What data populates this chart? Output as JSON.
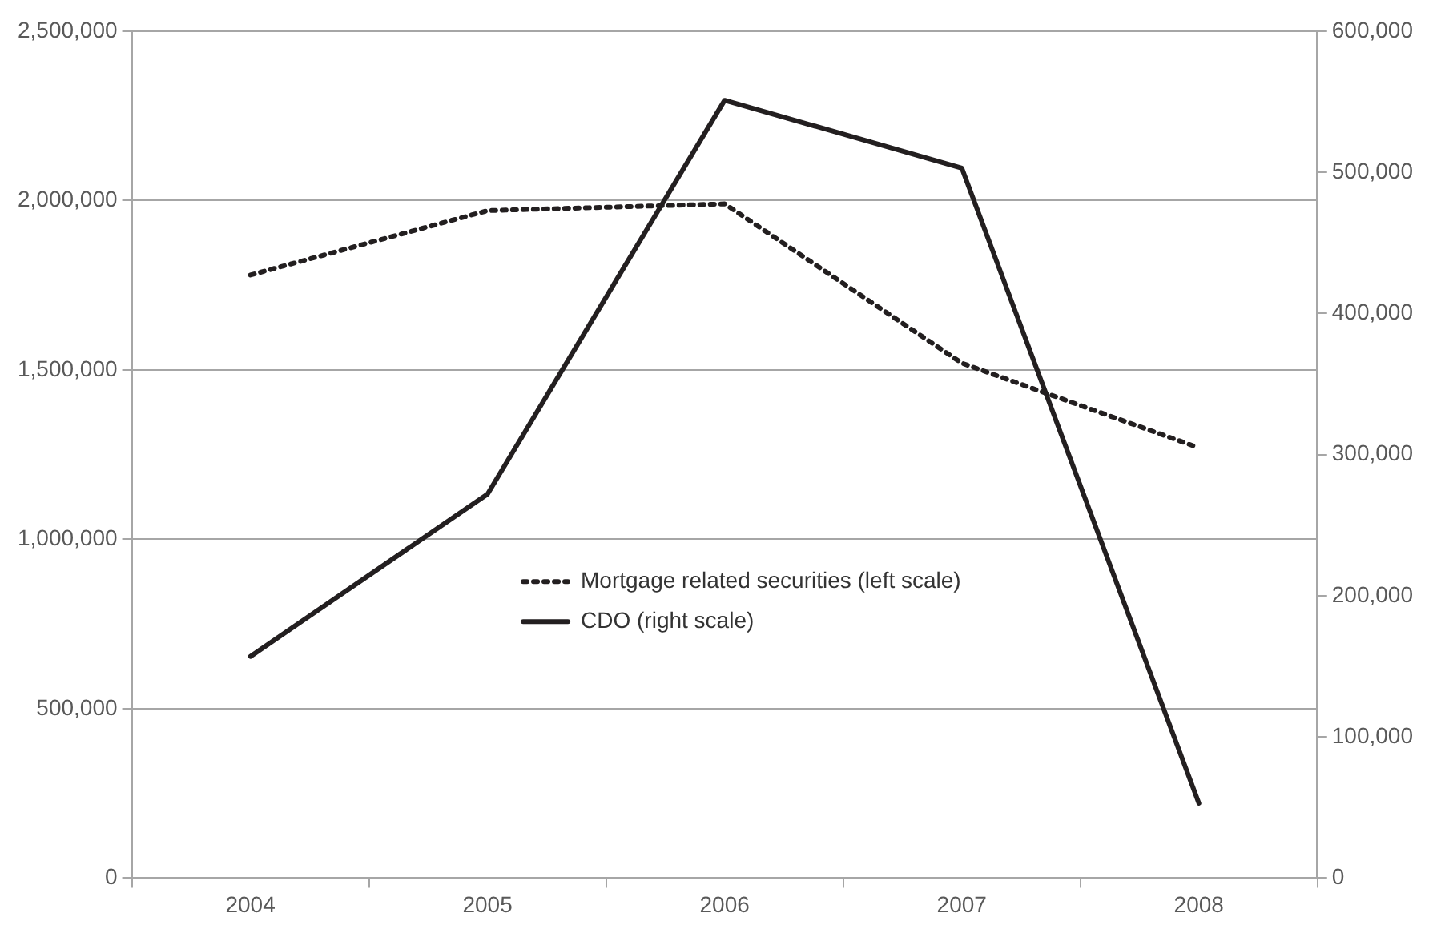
{
  "chart_data": {
    "type": "line",
    "categories": [
      "2004",
      "2005",
      "2006",
      "2007",
      "2008"
    ],
    "series": [
      {
        "name": "Mortgage related securities (left scale)",
        "color": "#231f20",
        "line_style": "dotted",
        "values": [
          1780000,
          1970000,
          1990000,
          1520000,
          1270000
        ]
      },
      {
        "name": "CDO (right scale)",
        "color": "#231f20",
        "line_style": "solid",
        "axis": "y2",
        "values": [
          157000,
          272000,
          551000,
          503000,
          53000
        ]
      }
    ],
    "ylim": [
      0,
      2500000
    ],
    "yticks": [
      0,
      {
        "value": 500000,
        "label": "500,000"
      },
      {
        "value": 1000000,
        "label": "1,000,000"
      },
      {
        "value": 1500000,
        "label": "1,500,000"
      },
      {
        "value": 2000000,
        "label": "2,000,000"
      },
      {
        "value": 2500000,
        "label": "2,500,000"
      }
    ],
    "y2lim": [
      0,
      600000
    ],
    "y2ticks": [
      0,
      {
        "value": 100000,
        "label": "100,000"
      },
      {
        "value": 200000,
        "label": "200,000"
      },
      {
        "value": 300000,
        "label": "300,000"
      },
      {
        "value": 400000,
        "label": "400,000"
      },
      {
        "value": 500000,
        "label": "500,000"
      },
      {
        "value": 600000,
        "label": "600,000"
      }
    ],
    "grid": "y",
    "legend": "center",
    "marker": "none"
  }
}
